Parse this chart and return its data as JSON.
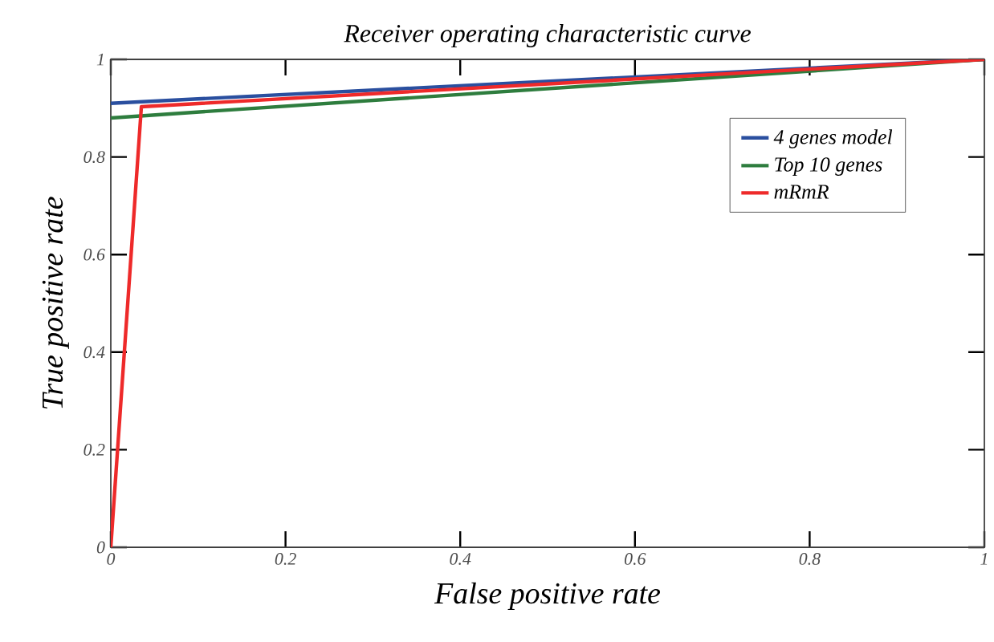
{
  "chart_data": {
    "type": "line",
    "title": "Receiver operating characteristic curve",
    "xlabel": "False positive rate",
    "ylabel": "True positive rate",
    "series": [
      {
        "name": "4 genes model",
        "color": "#2a4f9f",
        "x": [
          0,
          1
        ],
        "values": [
          0.91,
          1
        ]
      },
      {
        "name": "Top 10 genes",
        "color": "#2e7d3e",
        "x": [
          0,
          1
        ],
        "values": [
          0.88,
          1
        ]
      },
      {
        "name": "mRmR",
        "color": "#ee2a2a",
        "x": [
          0,
          0.035,
          1
        ],
        "values": [
          0,
          0.903,
          1
        ]
      }
    ],
    "xlim": [
      0,
      1
    ],
    "ylim": [
      0,
      1
    ],
    "xticks": [
      0,
      0.2,
      0.4,
      0.6,
      0.8,
      1
    ],
    "yticks": [
      0,
      0.2,
      0.4,
      0.6,
      0.8,
      1
    ],
    "grid": false,
    "legend": "top right",
    "marker": "none",
    "line_style": "solid"
  }
}
